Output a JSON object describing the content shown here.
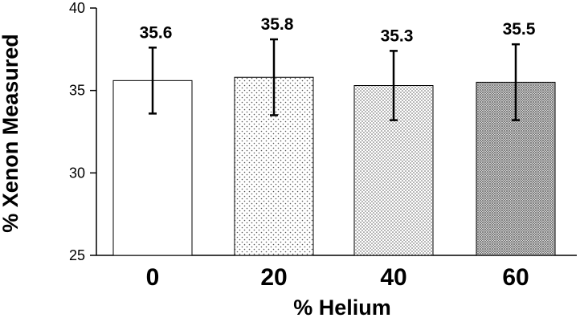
{
  "chart_data": {
    "type": "bar",
    "title": "",
    "xlabel": "% Helium",
    "ylabel": "% Xenon Measured",
    "categories": [
      "0",
      "20",
      "40",
      "60"
    ],
    "values": [
      35.6,
      35.8,
      35.3,
      35.5
    ],
    "data_labels": [
      "35.6",
      "35.8",
      "35.3",
      "35.5"
    ],
    "error_upper": [
      37.6,
      38.1,
      37.4,
      37.8
    ],
    "error_lower": [
      33.6,
      33.5,
      33.2,
      33.2
    ],
    "ylim": [
      25,
      40
    ],
    "yticks": [
      "25",
      "30",
      "35",
      "40"
    ],
    "grid": false,
    "bar_fill_patterns": [
      "none",
      "sparse-dots",
      "medium-dots",
      "dense-dots"
    ]
  }
}
